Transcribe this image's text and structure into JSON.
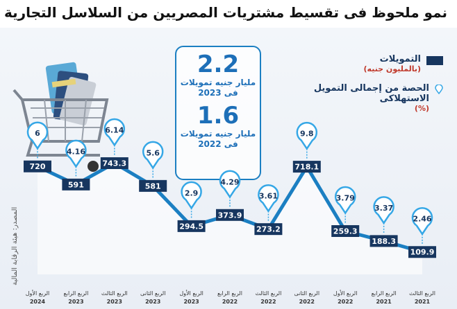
{
  "title": "نمو ملحوظ فى تقسيط مشتريات المصريين من السلاسل التجارية",
  "stats": [
    {
      "value": "2.2",
      "line1": "مليار جنيه تمويلات",
      "line2": "فى 2023"
    },
    {
      "value": "1.6",
      "line1": "مليار جنيه تمويلات",
      "line2": "فى 2022"
    }
  ],
  "legend": {
    "financing_label": "التمويلات",
    "financing_unit": "(بالمليون جنيه)",
    "share_label": "الحصة من إجمالى التمويل الاستهلاكى",
    "share_unit": "(%)"
  },
  "source": "المصدر: هيئة الرقابة المالية",
  "colors": {
    "navy": "#17365f",
    "blue": "#1b7fc2",
    "light_blue": "#35a7e6",
    "red": "#c0392b"
  },
  "chart_data": {
    "type": "line",
    "categories": [
      [
        "الربع الثالث",
        "2021"
      ],
      [
        "الربع الرابع",
        "2021"
      ],
      [
        "الربع الأول",
        "2022"
      ],
      [
        "الربع الثانى",
        "2022"
      ],
      [
        "الربع الثالث",
        "2022"
      ],
      [
        "الربع الرابع",
        "2022"
      ],
      [
        "الربع الأول",
        "2023"
      ],
      [
        "الربع الثانى",
        "2023"
      ],
      [
        "الربع الثالث",
        "2023"
      ],
      [
        "الربع الرابع",
        "2023"
      ],
      [
        "الربع الأول",
        "2024"
      ]
    ],
    "series": [
      {
        "name": "التمويلات",
        "values": [
          109.9,
          188.3,
          259.3,
          718.1,
          273.2,
          373.9,
          294.5,
          581,
          743.3,
          591,
          720
        ]
      },
      {
        "name": "الحصة من إجمالى التمويل الاستهلاكى",
        "values": [
          2.46,
          3.37,
          3.79,
          9.8,
          3.61,
          4.29,
          2.9,
          5.6,
          6.14,
          4.16,
          6
        ]
      }
    ],
    "value_labels": [
      "109.9",
      "188.3",
      "259.3",
      "718.1",
      "273.2",
      "373.9",
      "294.5",
      "581",
      "743.3",
      "591",
      "720"
    ],
    "share_labels": [
      "2.46",
      "3.37",
      "3.79",
      "9.8",
      "3.61",
      "4.29",
      "2.9",
      "5.6",
      "6.14",
      "4.16",
      "6"
    ],
    "ylim": [
      0,
      800
    ]
  }
}
